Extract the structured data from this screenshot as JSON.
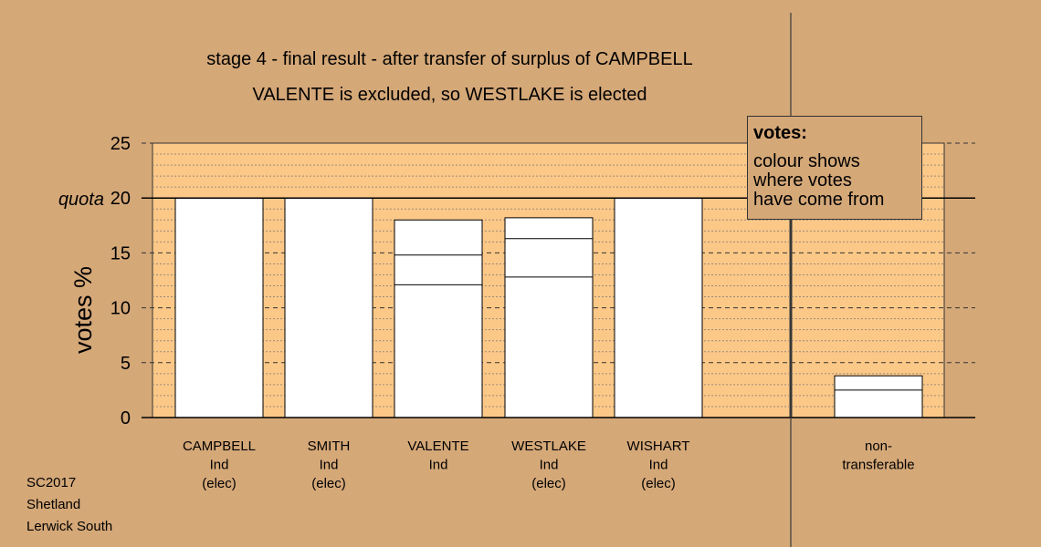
{
  "title_line1": "stage 4 - final result - after transfer of surplus of CAMPBELL",
  "title_line2": "VALENTE is excluded, so WESTLAKE is elected",
  "legend": {
    "heading": "votes:",
    "lines": [
      "colour shows",
      "where votes",
      "have come from"
    ]
  },
  "footer": [
    "SC2017",
    "Shetland",
    "Lerwick South"
  ],
  "colors": {
    "background": "#D5A878",
    "plot_area": "#FCC888",
    "bar_fill": "#FFFFFF",
    "line": "#000000"
  },
  "chart_data": {
    "type": "bar",
    "ylabel": "votes %",
    "ylim": [
      0,
      25
    ],
    "yticks": [
      "0",
      "5",
      "10",
      "15",
      "20",
      "25"
    ],
    "quota_label": "quota",
    "quota": 20,
    "grid": "dashed",
    "categories": [
      {
        "label": [
          "CAMPBELL",
          "Ind",
          "(elec)"
        ],
        "total": 20.0,
        "segments": [
          20.0
        ]
      },
      {
        "label": [
          "SMITH",
          "Ind",
          "(elec)"
        ],
        "total": 20.0,
        "segments": [
          20.0
        ]
      },
      {
        "label": [
          "VALENTE",
          "Ind"
        ],
        "total": 18.0,
        "segments": [
          12.1,
          2.7,
          3.2
        ]
      },
      {
        "label": [
          "WESTLAKE",
          "Ind",
          "(elec)"
        ],
        "total": 18.2,
        "segments": [
          12.8,
          3.5,
          1.9
        ]
      },
      {
        "label": [
          "WISHART",
          "Ind",
          "(elec)"
        ],
        "total": 20.0,
        "segments": [
          20.0
        ]
      },
      {
        "label": [
          "non-",
          "transferable"
        ],
        "total": 3.8,
        "segments": [
          2.5,
          1.3
        ]
      }
    ]
  }
}
